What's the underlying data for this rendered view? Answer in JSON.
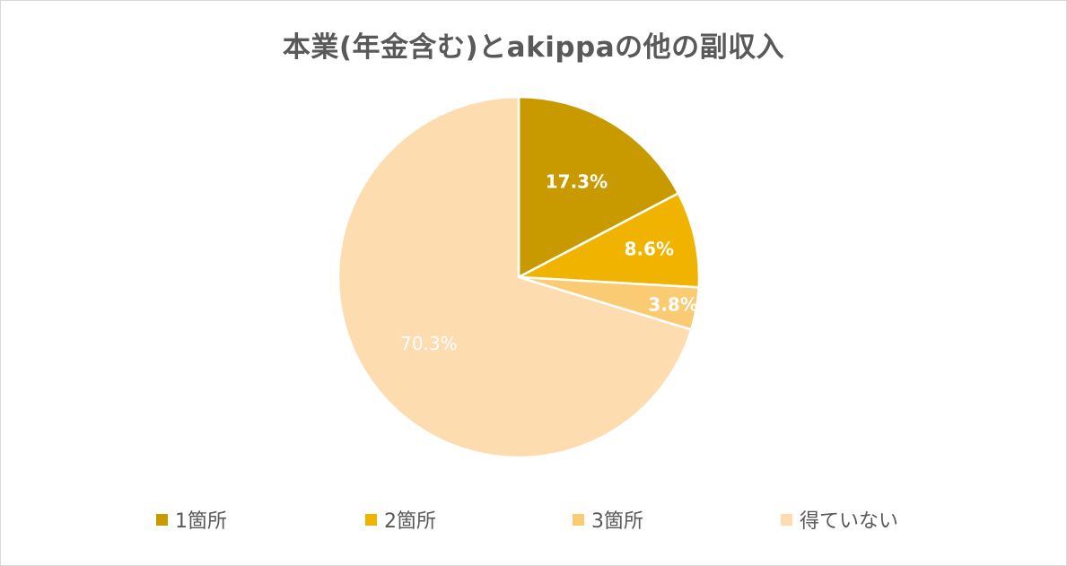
{
  "chart_data": {
    "type": "pie",
    "title": "本業(年金含む)とakippaの他の副収入",
    "categories": [
      "1箇所",
      "2箇所",
      "3箇所",
      "得ていない"
    ],
    "values": [
      17.3,
      8.6,
      3.8,
      70.3
    ],
    "labels": [
      "17.3%",
      "8.6%",
      "3.8%",
      "70.3%"
    ],
    "colors": [
      "#C99A00",
      "#F0B400",
      "#FBCB73",
      "#FDDDB0"
    ],
    "label_colors": [
      "#ffffff",
      "#ffffff",
      "#ffffff",
      "#ffffff"
    ],
    "legend_position": "bottom",
    "start_angle": "12 o'clock",
    "direction": "clockwise"
  }
}
